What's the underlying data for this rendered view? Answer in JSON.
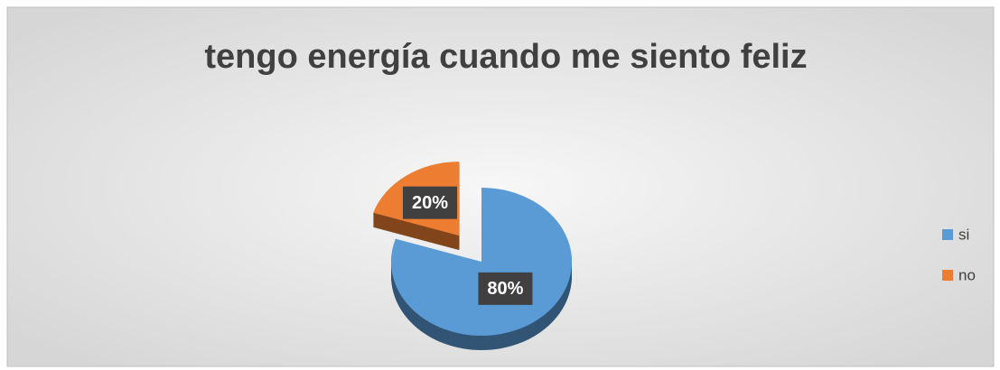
{
  "chart_data": {
    "type": "pie",
    "title": "tengo energía cuando me siento feliz",
    "categories": [
      "si",
      "no"
    ],
    "values": [
      80,
      20
    ],
    "value_labels": [
      "80%",
      "20%"
    ],
    "colors": [
      "#5b9bd5",
      "#ed7d31"
    ],
    "legend": "right"
  }
}
